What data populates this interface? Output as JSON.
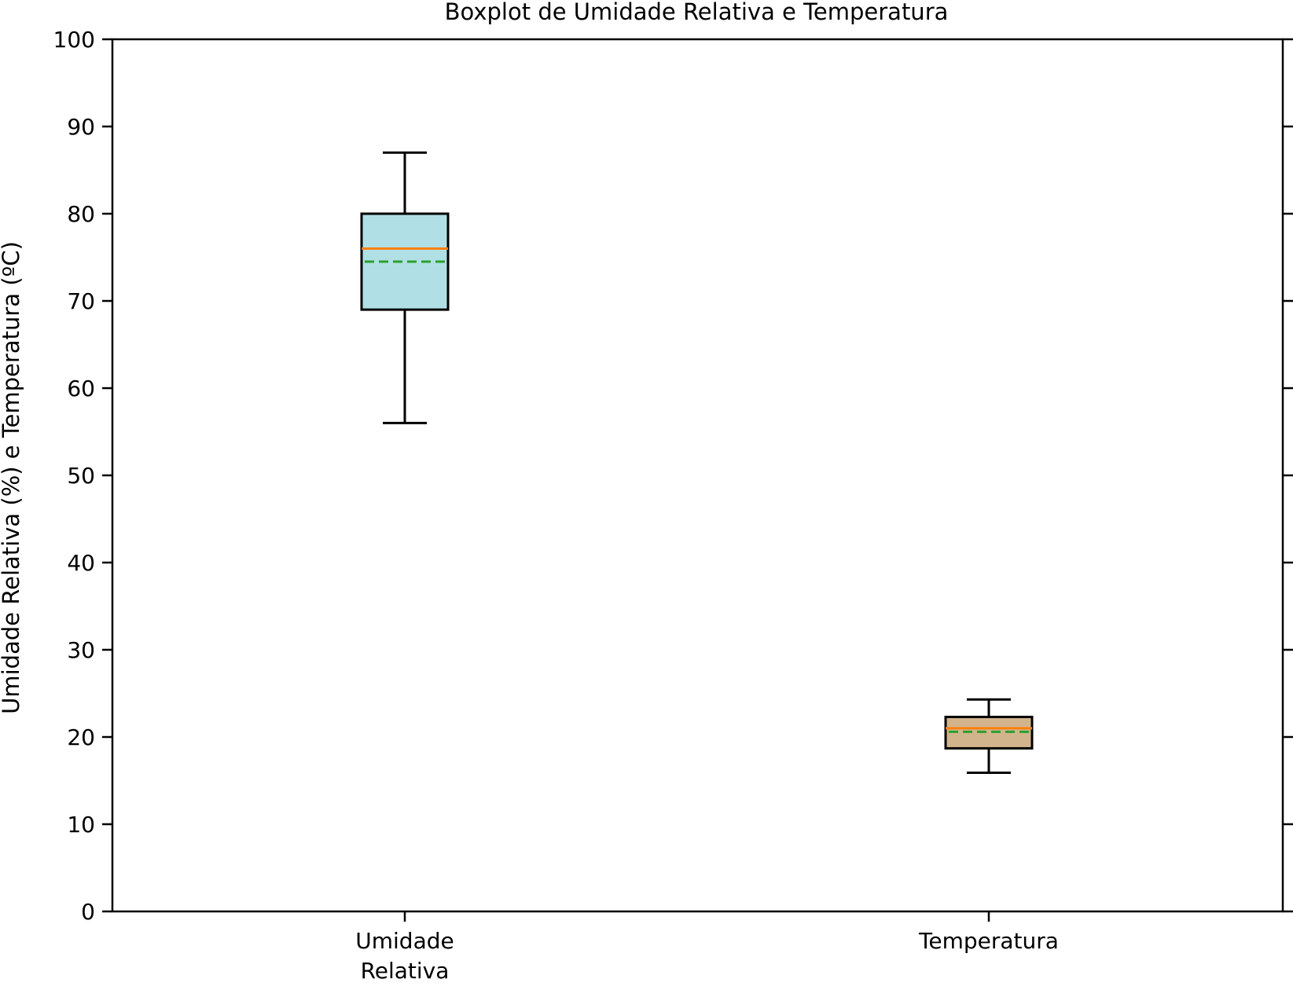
{
  "chart_data": {
    "type": "boxplot",
    "title": "Boxplot de Umidade Relativa e Temperatura",
    "ylabel": "Umidade Relativa (%) e Temperatura (ºC)",
    "xlabel": "",
    "ylim": [
      0,
      100
    ],
    "yticks": [
      0,
      10,
      20,
      30,
      40,
      50,
      60,
      70,
      80,
      90,
      100
    ],
    "grid": false,
    "categories": [
      [
        "Umidade",
        "Relativa"
      ],
      [
        "Temperatura"
      ]
    ],
    "boxes": [
      {
        "whisker_low": 56,
        "q1": 69,
        "median": 76,
        "mean": 74.5,
        "q3": 80,
        "whisker_high": 87,
        "color": "#b0e0e6"
      },
      {
        "whisker_low": 15.9,
        "q1": 18.7,
        "median": 21,
        "mean": 20.6,
        "q3": 22.3,
        "whisker_high": 24.3,
        "color": "#d2b48c"
      }
    ],
    "median_color": "#ff7f0e",
    "mean_color": "#2ca02c"
  }
}
